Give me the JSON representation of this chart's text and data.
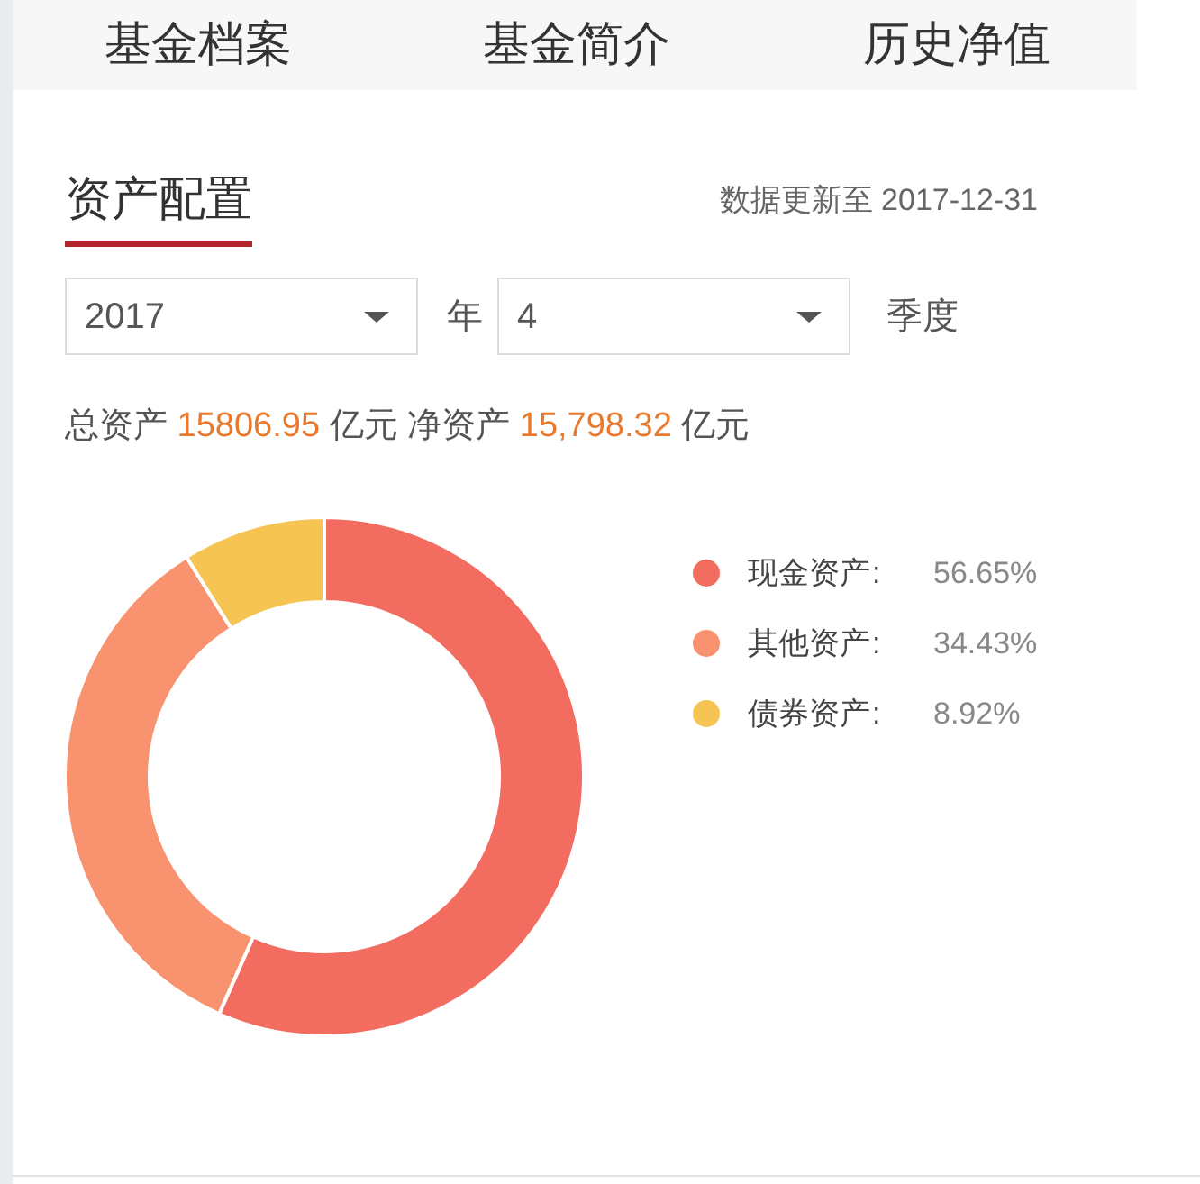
{
  "chart_data": {
    "type": "donut",
    "title": "资产配置",
    "subtitle": "数据更新至 2017-12-31",
    "categories": [
      "现金资产",
      "其他资产",
      "债券资产"
    ],
    "values": [
      56.65,
      34.43,
      8.92
    ],
    "colors": [
      "#f26c5f",
      "#f9936f",
      "#f5c452"
    ],
    "value_labels": [
      "56.65%",
      "34.43%",
      "8.92%"
    ],
    "legend": "right",
    "annotations": [
      "基金档案",
      "基金简介",
      "历史净值",
      "2017",
      "年",
      "4",
      "季度",
      "总资产 15806.95 亿元 净资产 15,798.32 亿元",
      ":",
      ":",
      ":"
    ]
  }
}
